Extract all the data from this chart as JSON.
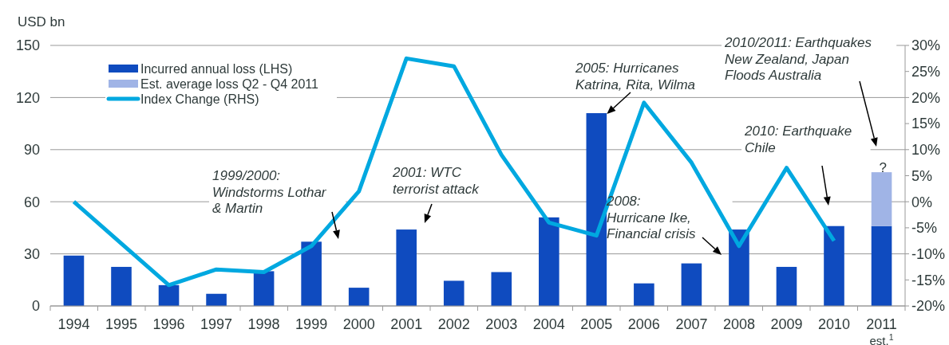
{
  "chart_data": {
    "type": "bar",
    "stacked": true,
    "ylabel": "USD bn",
    "categories": [
      "1994",
      "1995",
      "1996",
      "1997",
      "1998",
      "1999",
      "2000",
      "2001",
      "2002",
      "2003",
      "2004",
      "2005",
      "2006",
      "2007",
      "2008",
      "2009",
      "2010",
      "2011 est.$^{1}$"
    ],
    "series": [
      {
        "name": "Incurred annual loss (LHS)",
        "color": "#0f4bbf",
        "values": [
          29,
          22.5,
          12,
          7,
          20,
          37,
          10.5,
          44,
          14.5,
          19.5,
          51,
          111,
          13,
          24.5,
          44,
          22.5,
          46,
          46
        ]
      },
      {
        "name": "Est. average loss Q2 - Q4 2011",
        "color": "#a0b4e6",
        "values": [
          null,
          null,
          null,
          null,
          null,
          null,
          null,
          null,
          null,
          null,
          null,
          null,
          null,
          null,
          null,
          null,
          null,
          31
        ]
      },
      {
        "name": "Index Change (RHS)",
        "type": "line",
        "axis": "y2",
        "color": "#00a8e0",
        "values": [
          0,
          -8,
          -16,
          -13,
          -13.5,
          -8.5,
          2,
          27.5,
          26,
          9,
          -4,
          -6.5,
          19,
          7.5,
          -8.5,
          6.5,
          -7.5,
          null
        ]
      }
    ],
    "ylim": [
      0,
      150
    ],
    "yticks": [
      0,
      30,
      60,
      90,
      120,
      150
    ],
    "y2lim": [
      -20,
      30
    ],
    "y2ticks": [
      {
        "value": -20,
        "label": "-20%"
      },
      {
        "value": -15,
        "label": "-15%"
      },
      {
        "value": -10,
        "label": "-10%"
      },
      {
        "value": -5,
        "label": "-5%"
      },
      {
        "value": 0,
        "label": "0%"
      },
      {
        "value": 5,
        "label": "5%"
      },
      {
        "value": 10,
        "label": "10%"
      },
      {
        "value": 15,
        "label": "15%"
      },
      {
        "value": 20,
        "label": "20%"
      },
      {
        "value": 25,
        "label": "25%"
      },
      {
        "value": 30,
        "label": "30%"
      }
    ],
    "grid": "y",
    "legend": "top left",
    "annotations": [
      "1999/2000:\nWindstorms Lothar\n& Martin",
      "2001: WTC\nterrorist attack",
      {
        "text": "2005: Hurricanes\nKatrina, Rita, Wilma",
        "x": "2005",
        "y": 110.5
      },
      "2008:\nHurricane Ike,\nFinancial crisis",
      "2010: Earthquake\nChile",
      "2010/2011: Earthquakes\nNew Zealand, Japan\nFloods Australia",
      {
        "text": "?",
        "x": "2011 est.$^{1}$",
        "y": 77
      }
    ]
  }
}
